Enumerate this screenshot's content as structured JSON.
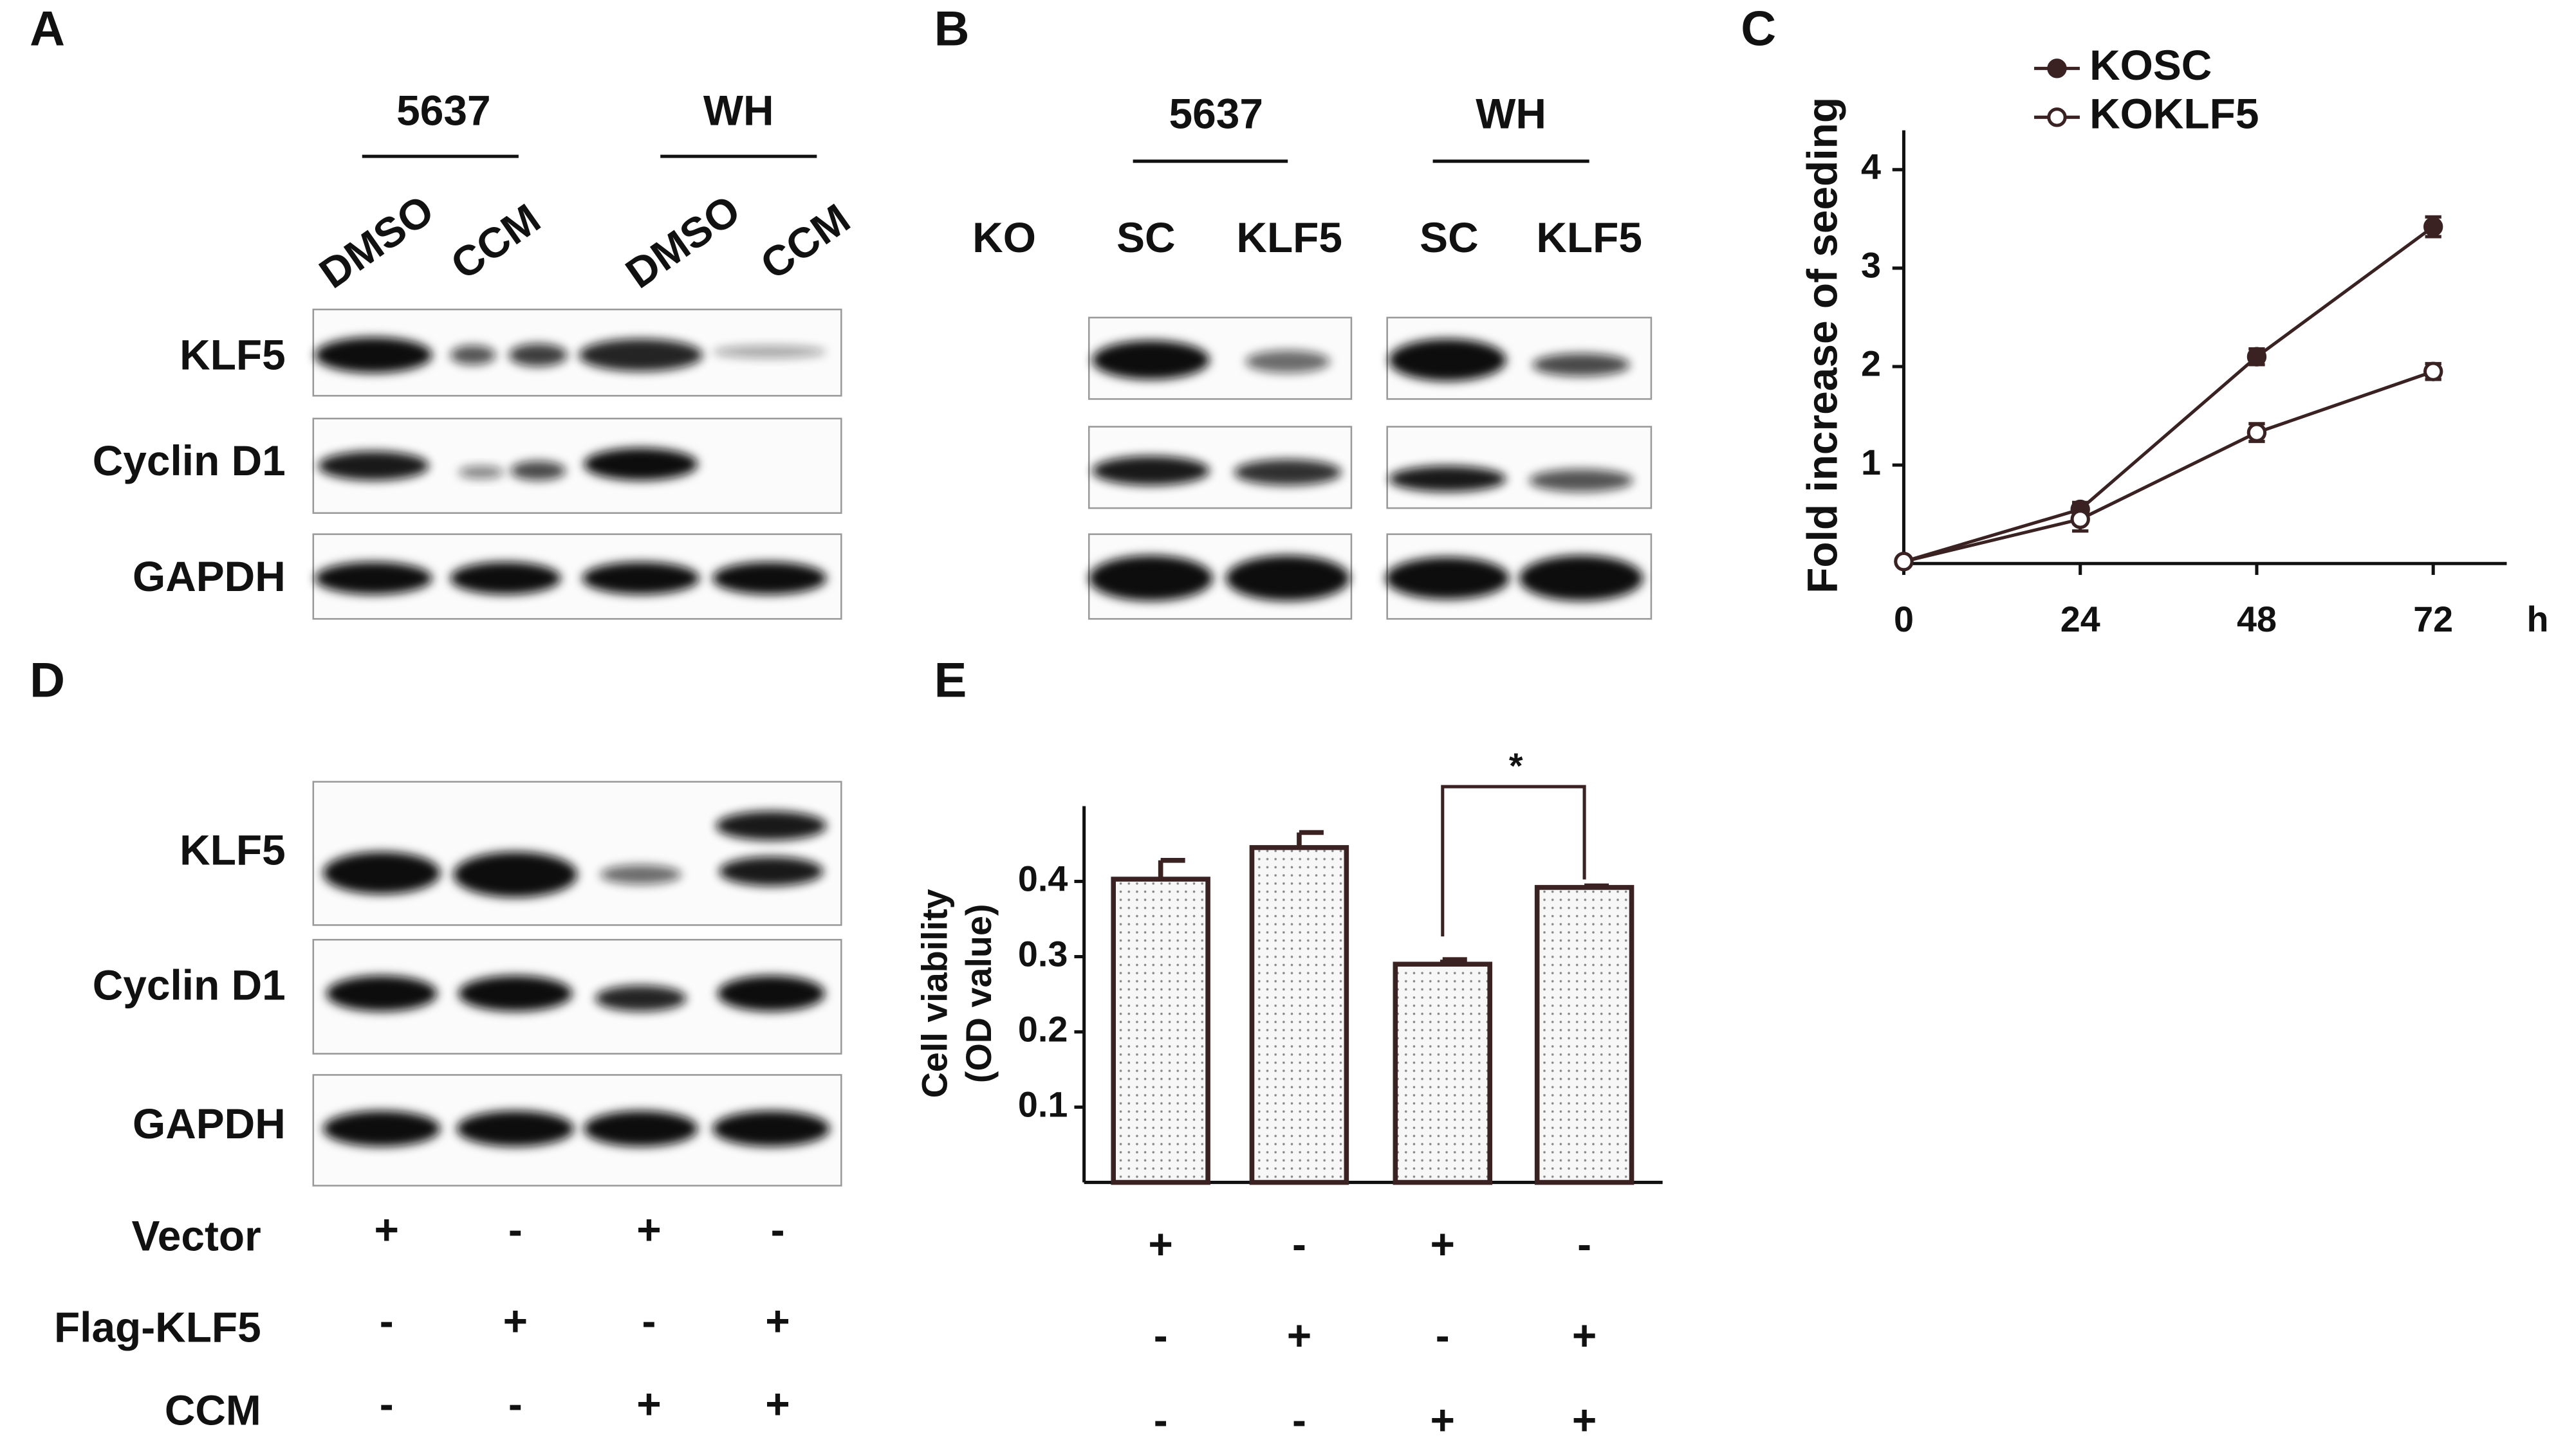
{
  "panels": {
    "A": {
      "label": "A",
      "groups": [
        "5637",
        "WH"
      ],
      "lanes": [
        "DMSO",
        "CCM",
        "DMSO",
        "CCM"
      ],
      "rows": [
        "KLF5",
        "Cyclin D1",
        "GAPDH"
      ]
    },
    "B": {
      "label": "B",
      "groups": [
        "5637",
        "WH"
      ],
      "row_label": "KO",
      "lanes": [
        "SC",
        "KLF5",
        "SC",
        "KLF5"
      ]
    },
    "D": {
      "label": "D",
      "rows": [
        "KLF5",
        "Cyclin D1",
        "GAPDH"
      ],
      "conditions": [
        {
          "name": "Vector",
          "signs": [
            "+",
            "-",
            "+",
            "-"
          ]
        },
        {
          "name": "Flag-KLF5",
          "signs": [
            "-",
            "+",
            "-",
            "+"
          ]
        },
        {
          "name": "CCM",
          "signs": [
            "-",
            "-",
            "+",
            "+"
          ]
        }
      ]
    }
  },
  "chart_data": [
    {
      "type": "line",
      "label": "C",
      "y_label": "Fold increase of seeding",
      "x_unit": "h",
      "x": [
        0,
        24,
        48,
        72
      ],
      "xlim": [
        0,
        82
      ],
      "xticks": [
        0,
        24,
        48,
        72
      ],
      "ylim": [
        0,
        4.4
      ],
      "yticks": [
        1,
        2,
        3,
        4
      ],
      "series": [
        {
          "name": "KOSC",
          "color": "#3a2222",
          "marker": "filled",
          "values": [
            0.02,
            0.55,
            2.1,
            3.42
          ],
          "errors": [
            0.03,
            0.07,
            0.08,
            0.1
          ]
        },
        {
          "name": "KOKLF5",
          "color": "#3a2222",
          "marker": "open",
          "values": [
            0.02,
            0.45,
            1.33,
            1.95
          ],
          "errors": [
            0.03,
            0.12,
            0.09,
            0.08
          ]
        }
      ]
    },
    {
      "type": "bar",
      "label": "E",
      "y_label": [
        "Cell viability",
        "(OD value)"
      ],
      "values": [
        0.403,
        0.445,
        0.29,
        0.392
      ],
      "errors": [
        0.025,
        0.02,
        0.006,
        0.002
      ],
      "color": "#3a2222",
      "ylim": [
        0,
        0.5
      ],
      "yticks": [
        0.1,
        0.2,
        0.3,
        0.4
      ],
      "annotation": "*",
      "conditions": [
        [
          "+",
          "-",
          "+",
          "-"
        ],
        [
          "-",
          "+",
          "-",
          "+"
        ],
        [
          "-",
          "-",
          "+",
          "+"
        ]
      ]
    }
  ]
}
